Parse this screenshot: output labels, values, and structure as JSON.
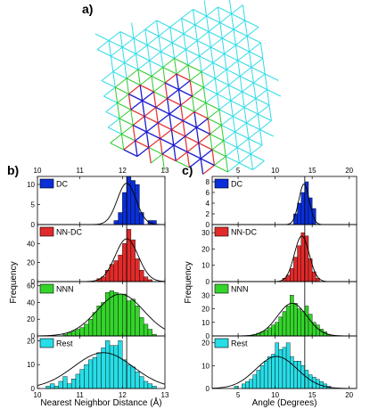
{
  "panel_labels": {
    "a": "a)",
    "b": "b)",
    "c": "c)"
  },
  "lattice_colors": {
    "green": "#2fcc2f",
    "cyan": "#33dce6",
    "red": "#e43a3a",
    "blue": "#1c1ccf"
  },
  "colors": {
    "DC": "#0a2fd8",
    "NN-DC": "#e12a2a",
    "NNN": "#34d42b",
    "Rest": "#27dde6"
  },
  "chart_data": [
    {
      "type": "bar",
      "panel": "b",
      "xlabel": "Nearest Neighbor Distance (Å)",
      "ylabel": "Frequency",
      "xlim": [
        10,
        13
      ],
      "xticks": [
        "10",
        "11",
        "12",
        "13"
      ],
      "bin_width": 0.1,
      "vline": 12.1,
      "series": [
        {
          "name": "DC",
          "ylim": [
            0,
            12
          ],
          "yticks": [
            "0",
            "5",
            "10"
          ],
          "bin_starts": [
            11.8,
            11.9,
            12.0,
            12.1,
            12.2,
            12.3,
            12.4,
            12.6,
            12.7
          ],
          "values": [
            1,
            3,
            8,
            12,
            11,
            10,
            3,
            1,
            1
          ],
          "fit": {
            "mu": 12.1,
            "sigma": 0.22,
            "amp": 10.3
          }
        },
        {
          "name": "NN-DC",
          "ylim": [
            0,
            60
          ],
          "yticks": [
            "0",
            "20",
            "40"
          ],
          "bin_starts": [
            11.4,
            11.5,
            11.6,
            11.7,
            11.8,
            11.9,
            12.0,
            12.1,
            12.2,
            12.3,
            12.4,
            12.5,
            12.6
          ],
          "values": [
            3,
            5,
            12,
            18,
            22,
            28,
            40,
            55,
            44,
            24,
            12,
            5,
            2
          ],
          "fit": {
            "mu": 12.1,
            "sigma": 0.27,
            "amp": 45
          }
        },
        {
          "name": "NNN",
          "ylim": [
            0,
            65
          ],
          "yticks": [
            "0",
            "20",
            "40",
            "60"
          ],
          "bin_starts": [
            10.6,
            10.7,
            10.8,
            10.9,
            11.0,
            11.1,
            11.2,
            11.3,
            11.4,
            11.5,
            11.6,
            11.7,
            11.8,
            11.9,
            12.0,
            12.1,
            12.2,
            12.3,
            12.4,
            12.5,
            12.6,
            12.7
          ],
          "values": [
            2,
            4,
            6,
            8,
            10,
            14,
            20,
            28,
            36,
            40,
            52,
            54,
            52,
            50,
            50,
            42,
            44,
            36,
            22,
            14,
            8,
            2
          ],
          "fit": {
            "mu": 11.95,
            "sigma": 0.55,
            "amp": 50
          }
        },
        {
          "name": "Rest",
          "ylim": [
            0,
            22
          ],
          "yticks": [
            "0",
            "10",
            "20"
          ],
          "bin_starts": [
            10.2,
            10.3,
            10.4,
            10.5,
            10.6,
            10.7,
            10.8,
            10.9,
            11.0,
            11.1,
            11.2,
            11.3,
            11.4,
            11.5,
            11.6,
            11.7,
            11.8,
            11.9,
            12.0,
            12.1,
            12.2,
            12.3,
            12.4,
            12.5,
            12.6,
            12.7
          ],
          "values": [
            1,
            2,
            1,
            3,
            5,
            2,
            4,
            6,
            8,
            10,
            12,
            13,
            15,
            17,
            20,
            18,
            18,
            20,
            12,
            10,
            9,
            7,
            5,
            3,
            2,
            1
          ],
          "fit": {
            "mu": 11.55,
            "sigma": 0.7,
            "amp": 15
          }
        }
      ]
    },
    {
      "type": "bar",
      "panel": "c",
      "xlabel": "Angle (Degrees)",
      "ylabel": "Frequency",
      "xlim": [
        1.5,
        21
      ],
      "xticks": [
        "5",
        "10",
        "15",
        "20"
      ],
      "bin_width": 0.5,
      "vline": 14,
      "series": [
        {
          "name": "DC",
          "ylim": [
            0,
            9
          ],
          "yticks": [
            "0",
            "2",
            "4",
            "6",
            "8"
          ],
          "bin_starts": [
            12.5,
            13.0,
            13.5,
            14.0,
            14.5,
            15.0
          ],
          "values": [
            2,
            4,
            6,
            8,
            5,
            3
          ],
          "fit": {
            "mu": 13.9,
            "sigma": 0.7,
            "amp": 7.6
          }
        },
        {
          "name": "NN-DC",
          "ylim": [
            0,
            35
          ],
          "yticks": [
            "0",
            "10",
            "20",
            "30"
          ],
          "bin_starts": [
            11.0,
            11.5,
            12.0,
            12.5,
            13.0,
            13.5,
            14.0,
            14.5,
            15.0,
            15.5
          ],
          "values": [
            2,
            4,
            8,
            15,
            22,
            30,
            28,
            14,
            6,
            2
          ],
          "fit": {
            "mu": 13.6,
            "sigma": 1.0,
            "amp": 28
          }
        },
        {
          "name": "NNN",
          "ylim": [
            0,
            40
          ],
          "yticks": [
            "0",
            "10",
            "20",
            "30"
          ],
          "bin_starts": [
            7.0,
            7.5,
            8.0,
            8.5,
            9.0,
            9.5,
            10.0,
            10.5,
            11.0,
            11.5,
            12.0,
            12.5,
            13.0,
            13.5,
            14.0,
            14.5,
            15.0,
            15.5,
            16.0,
            16.5,
            17.0
          ],
          "values": [
            1,
            2,
            3,
            4,
            6,
            8,
            10,
            14,
            18,
            22,
            30,
            24,
            20,
            18,
            22,
            16,
            10,
            8,
            5,
            3,
            1
          ],
          "fit": {
            "mu": 12.3,
            "sigma": 2.0,
            "amp": 24
          }
        },
        {
          "name": "Rest",
          "ylim": [
            0,
            23
          ],
          "yticks": [
            "0",
            "10",
            "20"
          ],
          "bin_starts": [
            4.5,
            5.5,
            6.0,
            6.5,
            7.0,
            7.5,
            8.0,
            8.5,
            9.0,
            9.5,
            10.0,
            10.5,
            11.0,
            11.5,
            12.0,
            12.5,
            13.0,
            13.5,
            14.0,
            14.5,
            15.0,
            15.5,
            16.0,
            16.5,
            17.0
          ],
          "values": [
            1,
            2,
            3,
            4,
            6,
            8,
            10,
            12,
            14,
            15,
            20,
            17,
            18,
            20,
            14,
            12,
            12,
            10,
            8,
            6,
            5,
            4,
            3,
            2,
            1
          ],
          "fit": {
            "mu": 10.2,
            "sigma": 2.8,
            "amp": 14
          }
        }
      ]
    }
  ]
}
